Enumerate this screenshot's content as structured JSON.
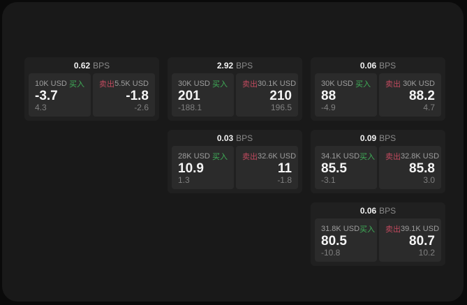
{
  "labels": {
    "buy": "买入",
    "sell": "卖出",
    "bps_unit": "BPS"
  },
  "colors": {
    "buy_green": "#3fae58",
    "sell_red": "#c04a5e",
    "card_bg": "#202020",
    "panel_bg": "#2b2b2b",
    "window_bg": "#191919"
  },
  "cards": [
    {
      "bps": "0.62",
      "row": 1,
      "col": 1,
      "buy": {
        "amount": "10K USD",
        "price": "-3.7",
        "delta": "4.3"
      },
      "sell": {
        "amount": "5.5K USD",
        "price": "-1.8",
        "delta": "-2.6"
      }
    },
    {
      "bps": "2.92",
      "row": 1,
      "col": 2,
      "buy": {
        "amount": "30K USD",
        "price": "201",
        "delta": "-188.1"
      },
      "sell": {
        "amount": "30.1K USD",
        "price": "210",
        "delta": "196.5"
      }
    },
    {
      "bps": "0.06",
      "row": 1,
      "col": 3,
      "buy": {
        "amount": "30K USD",
        "price": "88",
        "delta": "-4.9"
      },
      "sell": {
        "amount": "30K USD",
        "price": "88.2",
        "delta": "4.7"
      }
    },
    {
      "bps": "0.03",
      "row": 2,
      "col": 2,
      "buy": {
        "amount": "28K USD",
        "price": "10.9",
        "delta": "1.3"
      },
      "sell": {
        "amount": "32.6K USD",
        "price": "11",
        "delta": "-1.8"
      }
    },
    {
      "bps": "0.09",
      "row": 2,
      "col": 3,
      "buy": {
        "amount": "34.1K USD",
        "price": "85.5",
        "delta": "-3.1"
      },
      "sell": {
        "amount": "32.8K USD",
        "price": "85.8",
        "delta": "3.0"
      }
    },
    {
      "bps": "0.06",
      "row": 3,
      "col": 3,
      "buy": {
        "amount": "31.8K USD",
        "price": "80.5",
        "delta": "-10.8"
      },
      "sell": {
        "amount": "39.1K USD",
        "price": "80.7",
        "delta": "10.2"
      }
    }
  ]
}
